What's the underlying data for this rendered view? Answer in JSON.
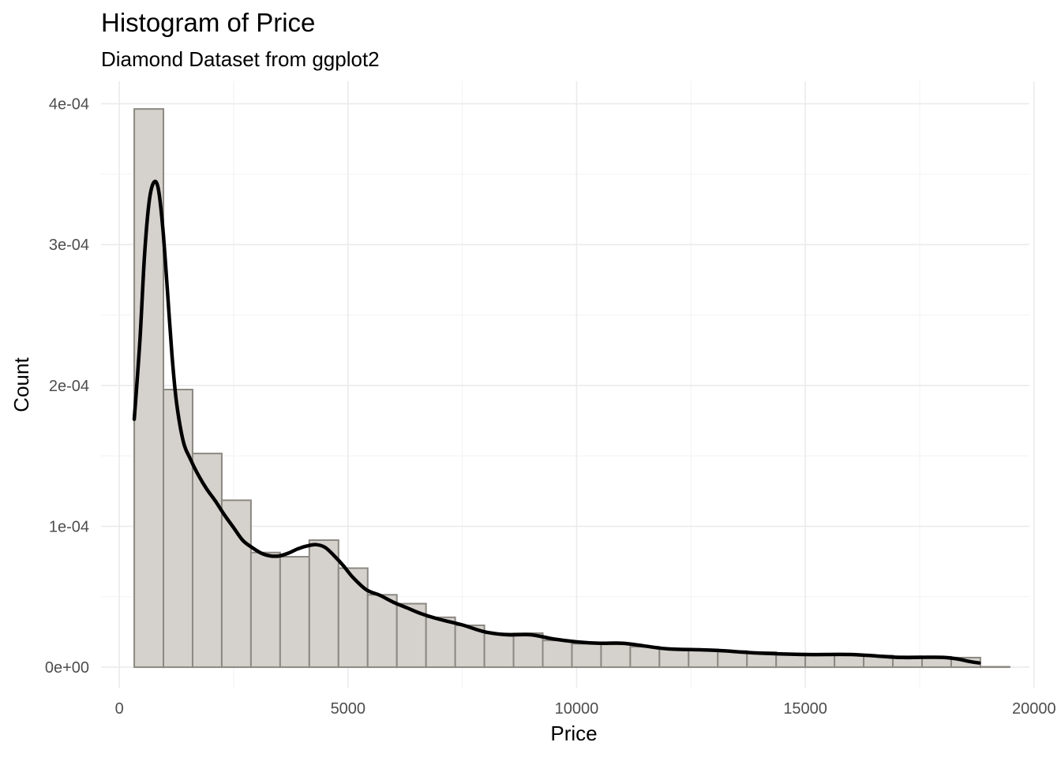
{
  "chart_data": {
    "type": "bar",
    "title": "Histogram of Price",
    "subtitle": "Diamond Dataset from ggplot2",
    "xlabel": "Price",
    "ylabel": "Count",
    "xlim": [
      -400,
      19900
    ],
    "ylim": [
      -1.45e-05,
      0.000416
    ],
    "x_ticks": [
      0,
      5000,
      10000,
      15000,
      20000
    ],
    "x_tick_labels": [
      "0",
      "5000",
      "10000",
      "15000",
      "20000"
    ],
    "y_ticks": [
      0,
      0.0001,
      0.0002,
      0.0003,
      0.0004
    ],
    "y_tick_labels": [
      "0e+00",
      "1e-04",
      "2e-04",
      "3e-04",
      "4e-04"
    ],
    "grid": true,
    "bin_edges": [
      326,
      964,
      1602,
      2240,
      2878,
      3516,
      4154,
      4792,
      5430,
      6068,
      6706,
      7344,
      7982,
      8620,
      9258,
      9896,
      10534,
      11172,
      11810,
      12448,
      13086,
      13724,
      14362,
      15000,
      15638,
      16276,
      16914,
      17552,
      18190,
      18828,
      19466
    ],
    "values": [
      0.0003963,
      0.0001971,
      0.0001517,
      0.0001185,
      8.14e-05,
      7.84e-05,
      9.02e-05,
      7.03e-05,
      5.14e-05,
      4.51e-05,
      3.54e-05,
      2.97e-05,
      2.4e-05,
      2.42e-05,
      1.9e-05,
      1.66e-05,
      1.62e-05,
      1.45e-05,
      1.32e-05,
      1.26e-05,
      1.15e-05,
      1.07e-05,
      9.7e-06,
      9e-06,
      8.6e-06,
      8.3e-06,
      7.8e-06,
      7.4e-06,
      6.8e-06,
      3e-07
    ],
    "density": {
      "x": [
        326,
        450,
        550,
        650,
        750,
        850,
        950,
        1050,
        1150,
        1250,
        1400,
        1550,
        1700,
        1900,
        2100,
        2300,
        2500,
        2700,
        2900,
        3100,
        3300,
        3500,
        3700,
        3900,
        4100,
        4300,
        4500,
        4700,
        4900,
        5100,
        5400,
        5700,
        6000,
        6300,
        6600,
        7000,
        7500,
        8000,
        8500,
        9000,
        9500,
        10000,
        10500,
        11000,
        11500,
        12000,
        13000,
        14000,
        15000,
        16000,
        17000,
        17500,
        18000,
        18300,
        18600,
        18800
      ],
      "y": [
        0.000176,
        0.000232,
        0.000292,
        0.00033,
        0.000344,
        0.00034,
        0.000312,
        0.000268,
        0.000222,
        0.000188,
        0.00016,
        0.000148,
        0.000138,
        0.000127,
        0.000118,
        0.000108,
        9.9e-05,
        9e-05,
        8.5e-05,
        8.1e-05,
        7.9e-05,
        7.9e-05,
        8.1e-05,
        8.4e-05,
        8.6e-05,
        8.7e-05,
        8.5e-05,
        7.9e-05,
        7.2e-05,
        6.4e-05,
        5.5e-05,
        5.1e-05,
        4.6e-05,
        4.2e-05,
        3.8e-05,
        3.4e-05,
        3e-05,
        2.5e-05,
        2.3e-05,
        2.3e-05,
        2e-05,
        1.8e-05,
        1.7e-05,
        1.7e-05,
        1.5e-05,
        1.3e-05,
        1.2e-05,
        1e-05,
        9e-06,
        9e-06,
        7e-06,
        7e-06,
        7e-06,
        6e-06,
        4e-06,
        3e-06
      ]
    }
  }
}
